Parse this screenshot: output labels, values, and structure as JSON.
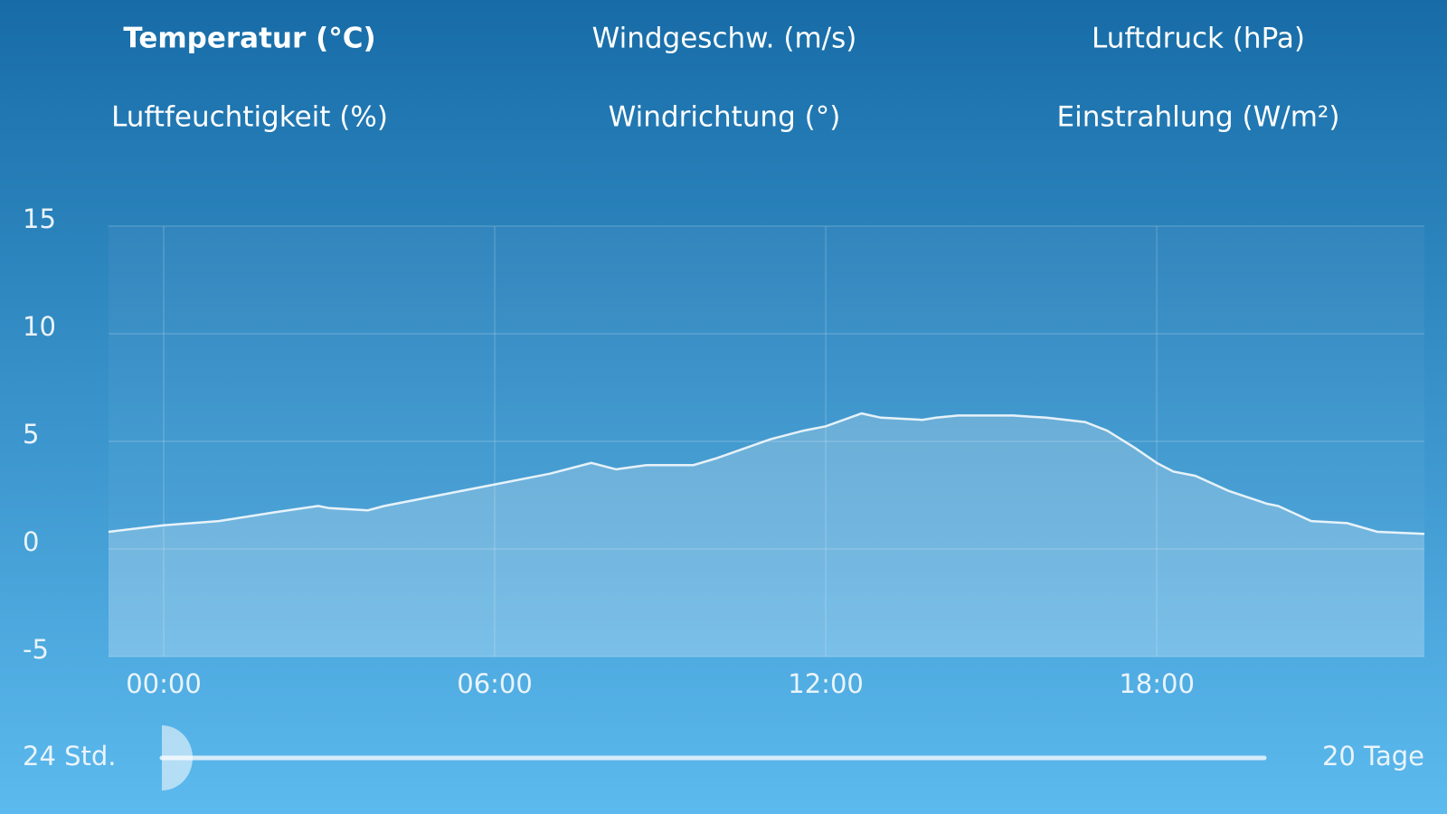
{
  "tabs": [
    "Temperatur (°C)",
    "Windgeschw. (m/s)",
    "Luftdruck (hPa)",
    "Luftfeuchtigkeit (%)",
    "Windrichtung (°)",
    "Einstrahlung (W/m²)"
  ],
  "selected_tab": 0,
  "chart_data": {
    "type": "area",
    "x": [
      -1,
      0,
      1,
      2,
      2.8,
      3,
      3.7,
      4,
      5,
      6,
      7,
      7.75,
      8.2,
      8.75,
      9.6,
      10,
      11,
      11.6,
      12,
      12.65,
      13,
      13.75,
      14,
      14.4,
      15.4,
      16,
      16.7,
      17.1,
      17.6,
      18,
      18.3,
      18.7,
      19.3,
      20,
      20.2,
      20.8,
      21.45,
      22,
      22.85
    ],
    "values": [
      0.8,
      1.1,
      1.3,
      1.7,
      2.0,
      1.9,
      1.8,
      2.0,
      2.5,
      3.0,
      3.5,
      4.0,
      3.7,
      3.9,
      3.9,
      4.2,
      5.1,
      5.5,
      5.7,
      6.3,
      6.1,
      6.0,
      6.1,
      6.2,
      6.2,
      6.1,
      5.9,
      5.5,
      4.7,
      4.0,
      3.6,
      3.4,
      2.7,
      2.1,
      2.0,
      1.3,
      1.2,
      0.8,
      0.7
    ],
    "color": "#ffffff",
    "xlim": [
      -1,
      22.85
    ],
    "xticks": [
      {
        "value": 0,
        "label": "00:00"
      },
      {
        "value": 6,
        "label": "06:00"
      },
      {
        "value": 12,
        "label": "12:00"
      },
      {
        "value": 18,
        "label": "18:00"
      }
    ],
    "ylim": [
      -5,
      15
    ],
    "yticks": [
      15,
      10,
      5,
      0,
      -5
    ],
    "grid": true
  },
  "slider": {
    "min_label": "24 Std.",
    "max_label": "20 Tage"
  }
}
